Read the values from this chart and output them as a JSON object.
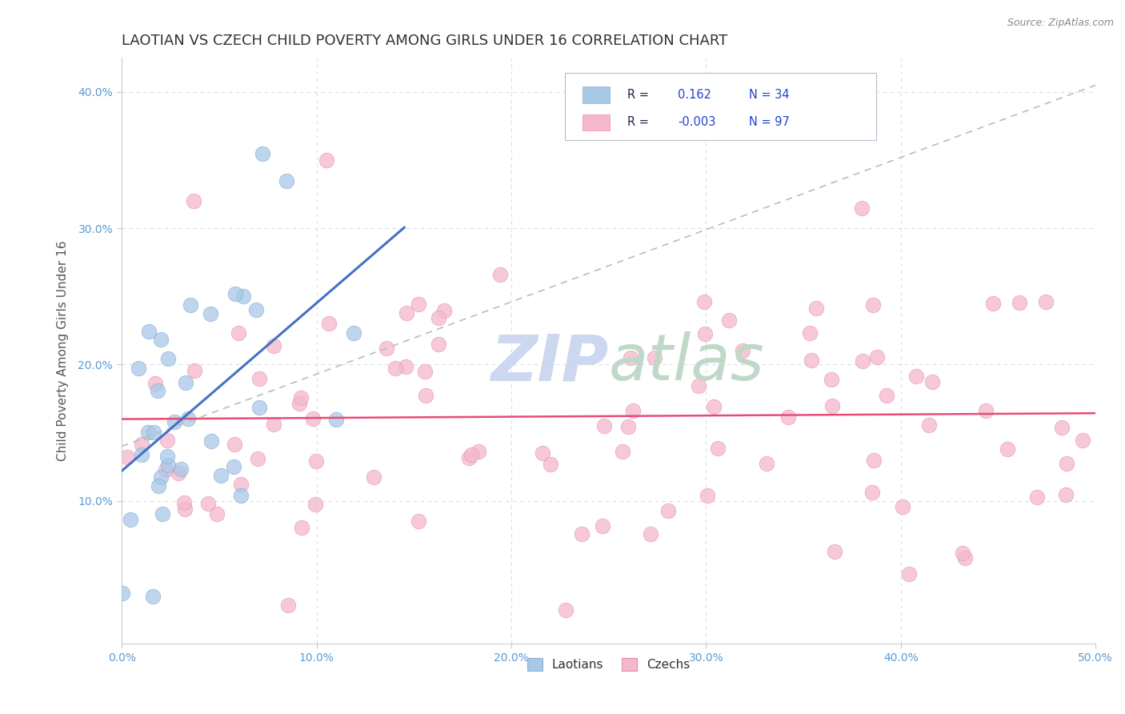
{
  "title": "LAOTIAN VS CZECH CHILD POVERTY AMONG GIRLS UNDER 16 CORRELATION CHART",
  "source_text": "Source: ZipAtlas.com",
  "xlim": [
    0.0,
    0.5
  ],
  "ylim": [
    -0.005,
    0.425
  ],
  "laotian_color": "#a8c8e8",
  "czech_color": "#f5b8cc",
  "laotian_R": 0.162,
  "laotian_N": 34,
  "czech_R": -0.003,
  "czech_N": 97,
  "legend_label_laotian": "Laotians",
  "legend_label_czech": "Czechs",
  "ylabel": "Child Poverty Among Girls Under 16",
  "title_fontsize": 13,
  "axis_tick_color": "#5b9bd5",
  "grid_color": "#d8dde8",
  "trend_blue": "#4472c4",
  "trend_pink": "#e84c73",
  "trend_gray": "#bbbbbb",
  "watermark_zip_color": "#ccd8ef",
  "watermark_atlas_color": "#c0d8c8"
}
